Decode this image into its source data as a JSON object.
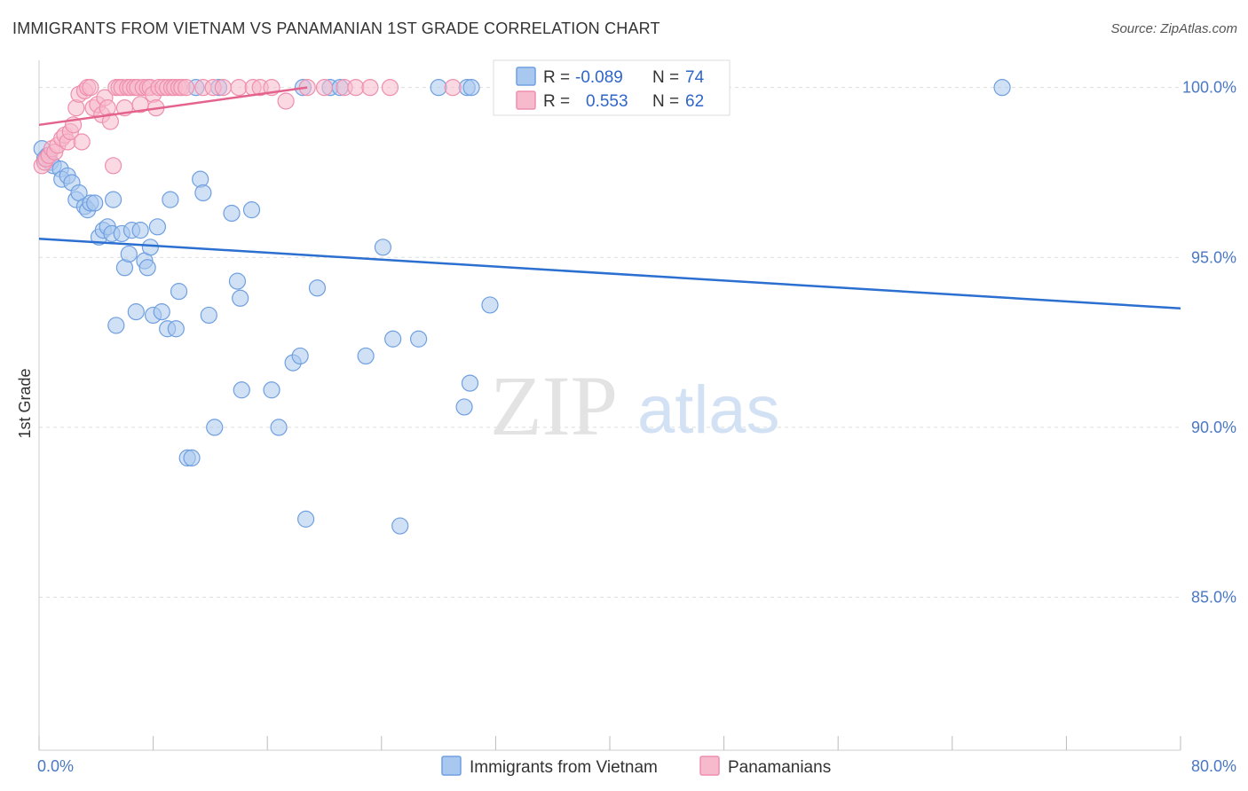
{
  "title": "IMMIGRANTS FROM VIETNAM VS PANAMANIAN 1ST GRADE CORRELATION CHART",
  "source": "Source: ZipAtlas.com",
  "watermark": {
    "zip": "ZIP",
    "atlas": "atlas"
  },
  "colors": {
    "blue_fill": "#a9c8ef",
    "blue_stroke": "#6f9fe0",
    "blue_line": "#2b6fd0",
    "pink_fill": "#f7b9cc",
    "pink_stroke": "#ee8fae",
    "pink_line": "#e4638d",
    "grid": "#dddddd",
    "tick_text": "#4a78c4"
  },
  "stats": {
    "r_label": "R =",
    "n_label": "N =",
    "rows": [
      {
        "series": "blue",
        "r": "-0.089",
        "n": "74"
      },
      {
        "series": "pink",
        "r": "0.553",
        "n": "62"
      }
    ]
  },
  "chart_data": {
    "type": "scatter",
    "title": "IMMIGRANTS FROM VIETNAM VS PANAMANIAN 1ST GRADE CORRELATION CHART",
    "xlabel": "",
    "ylabel": "1st Grade",
    "xlim": [
      0,
      80
    ],
    "ylim": [
      80.5,
      100.8
    ],
    "x_tick_labels": [
      {
        "value": 0,
        "label": "0.0%"
      },
      {
        "value": 80,
        "label": "80.0%"
      }
    ],
    "y_ticks": [
      {
        "value": 100,
        "label": "100.0%"
      },
      {
        "value": 95,
        "label": "95.0%"
      },
      {
        "value": 90,
        "label": "90.0%"
      },
      {
        "value": 85,
        "label": "85.0%"
      }
    ],
    "x_minor_ticks": [
      0,
      8,
      16,
      24,
      32,
      40,
      48,
      56,
      64,
      72,
      80
    ],
    "grid": true,
    "legend_position": "bottom",
    "series": [
      {
        "name": "Immigrants from Vietnam",
        "color": "blue",
        "trend": {
          "x": [
            0,
            80
          ],
          "y": [
            95.55,
            93.5
          ]
        },
        "points": [
          [
            0.2,
            98.2
          ],
          [
            0.4,
            97.9
          ],
          [
            0.6,
            98.0
          ],
          [
            0.8,
            97.8
          ],
          [
            1.0,
            97.7
          ],
          [
            1.5,
            97.6
          ],
          [
            1.6,
            97.3
          ],
          [
            2.0,
            97.4
          ],
          [
            2.3,
            97.2
          ],
          [
            2.6,
            96.7
          ],
          [
            2.8,
            96.9
          ],
          [
            3.2,
            96.5
          ],
          [
            3.4,
            96.4
          ],
          [
            3.6,
            96.6
          ],
          [
            3.9,
            96.6
          ],
          [
            4.2,
            95.6
          ],
          [
            4.5,
            95.8
          ],
          [
            4.8,
            95.9
          ],
          [
            5.1,
            95.7
          ],
          [
            5.2,
            96.7
          ],
          [
            5.8,
            95.7
          ],
          [
            6.0,
            94.7
          ],
          [
            6.3,
            95.1
          ],
          [
            6.5,
            95.8
          ],
          [
            6.8,
            93.4
          ],
          [
            5.4,
            93.0
          ],
          [
            7.1,
            95.8
          ],
          [
            7.4,
            94.9
          ],
          [
            7.6,
            94.7
          ],
          [
            7.8,
            95.3
          ],
          [
            8.0,
            93.3
          ],
          [
            8.3,
            95.9
          ],
          [
            8.6,
            93.4
          ],
          [
            9.0,
            92.9
          ],
          [
            9.2,
            96.7
          ],
          [
            9.6,
            92.9
          ],
          [
            9.8,
            94.0
          ],
          [
            10.4,
            89.1
          ],
          [
            10.7,
            89.1
          ],
          [
            11.0,
            100.0
          ],
          [
            11.3,
            97.3
          ],
          [
            11.5,
            96.9
          ],
          [
            11.9,
            93.3
          ],
          [
            12.3,
            90.0
          ],
          [
            12.6,
            100.0
          ],
          [
            13.5,
            96.3
          ],
          [
            13.9,
            94.3
          ],
          [
            14.1,
            93.8
          ],
          [
            14.2,
            91.1
          ],
          [
            14.9,
            96.4
          ],
          [
            16.3,
            91.1
          ],
          [
            16.8,
            90.0
          ],
          [
            17.8,
            91.9
          ],
          [
            18.5,
            100.0
          ],
          [
            18.3,
            92.1
          ],
          [
            18.7,
            87.3
          ],
          [
            19.5,
            94.1
          ],
          [
            20.4,
            100.0
          ],
          [
            21.1,
            100.0
          ],
          [
            22.9,
            92.1
          ],
          [
            24.1,
            95.3
          ],
          [
            24.8,
            92.6
          ],
          [
            25.3,
            87.1
          ],
          [
            26.6,
            92.6
          ],
          [
            28.0,
            100.0
          ],
          [
            30.0,
            100.0
          ],
          [
            29.8,
            90.6
          ],
          [
            30.2,
            91.3
          ],
          [
            30.3,
            100.0
          ],
          [
            31.6,
            93.6
          ],
          [
            32.5,
            100.0
          ],
          [
            34.0,
            100.0
          ],
          [
            36.0,
            100.0
          ],
          [
            67.5,
            100.0
          ]
        ]
      },
      {
        "name": "Panamanians",
        "color": "pink",
        "trend": {
          "x": [
            0,
            18.8
          ],
          "y": [
            98.9,
            100.0
          ]
        },
        "points": [
          [
            0.2,
            97.7
          ],
          [
            0.4,
            97.8
          ],
          [
            0.5,
            97.9
          ],
          [
            0.7,
            98.0
          ],
          [
            0.9,
            98.2
          ],
          [
            1.1,
            98.1
          ],
          [
            1.3,
            98.3
          ],
          [
            1.6,
            98.5
          ],
          [
            1.8,
            98.6
          ],
          [
            2.0,
            98.4
          ],
          [
            2.2,
            98.7
          ],
          [
            2.4,
            98.9
          ],
          [
            2.6,
            99.4
          ],
          [
            2.8,
            99.8
          ],
          [
            3.0,
            98.4
          ],
          [
            3.2,
            99.9
          ],
          [
            3.4,
            100.0
          ],
          [
            3.6,
            100.0
          ],
          [
            3.8,
            99.4
          ],
          [
            4.1,
            99.5
          ],
          [
            4.4,
            99.2
          ],
          [
            4.6,
            99.7
          ],
          [
            4.8,
            99.4
          ],
          [
            5.0,
            99.0
          ],
          [
            5.2,
            97.7
          ],
          [
            5.4,
            100.0
          ],
          [
            5.6,
            100.0
          ],
          [
            5.8,
            100.0
          ],
          [
            6.0,
            99.4
          ],
          [
            6.2,
            100.0
          ],
          [
            6.4,
            100.0
          ],
          [
            6.7,
            100.0
          ],
          [
            6.9,
            100.0
          ],
          [
            7.1,
            99.5
          ],
          [
            7.3,
            100.0
          ],
          [
            7.6,
            100.0
          ],
          [
            7.8,
            100.0
          ],
          [
            8.0,
            99.8
          ],
          [
            8.2,
            99.4
          ],
          [
            8.4,
            100.0
          ],
          [
            8.7,
            100.0
          ],
          [
            9.0,
            100.0
          ],
          [
            9.3,
            100.0
          ],
          [
            9.5,
            100.0
          ],
          [
            9.8,
            100.0
          ],
          [
            10.0,
            100.0
          ],
          [
            10.3,
            100.0
          ],
          [
            11.5,
            100.0
          ],
          [
            12.2,
            100.0
          ],
          [
            12.9,
            100.0
          ],
          [
            14.0,
            100.0
          ],
          [
            15.0,
            100.0
          ],
          [
            15.5,
            100.0
          ],
          [
            16.3,
            100.0
          ],
          [
            17.3,
            99.6
          ],
          [
            18.8,
            100.0
          ],
          [
            20.0,
            100.0
          ],
          [
            21.4,
            100.0
          ],
          [
            22.2,
            100.0
          ],
          [
            23.2,
            100.0
          ],
          [
            24.6,
            100.0
          ],
          [
            29.0,
            100.0
          ]
        ]
      }
    ]
  }
}
